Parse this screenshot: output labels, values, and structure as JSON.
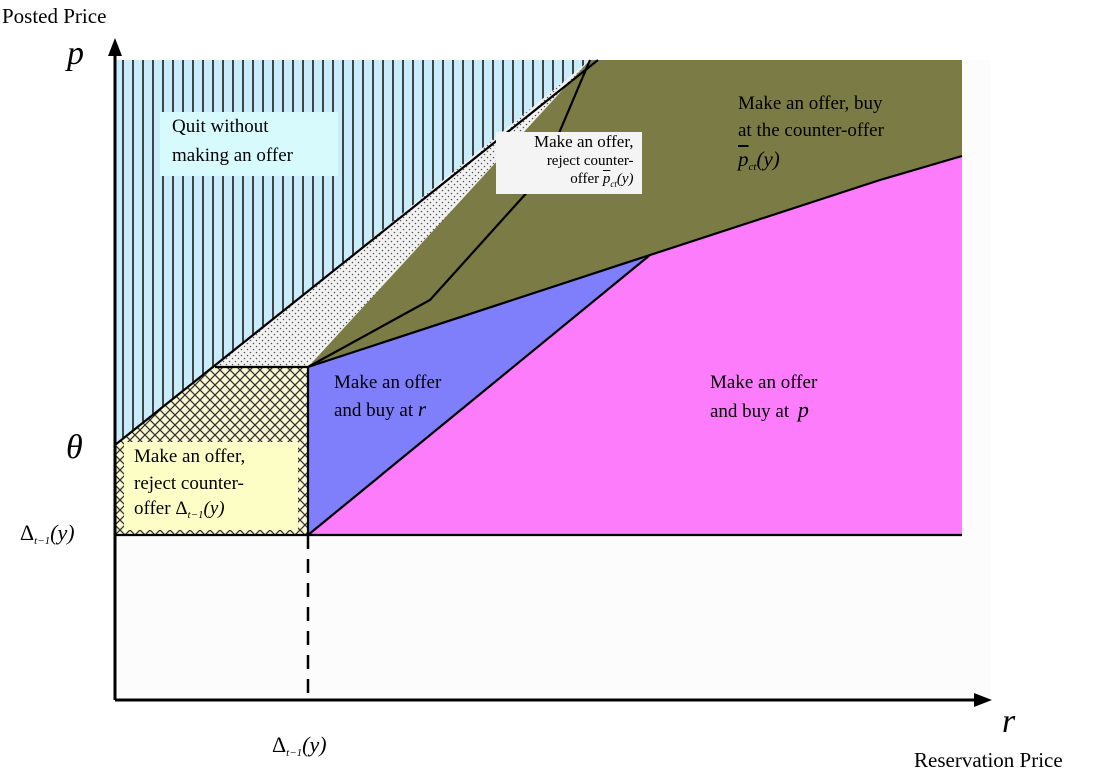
{
  "axes": {
    "y_title": "Posted Price",
    "x_title": "Reservation Price",
    "y_symbol": "p",
    "x_symbol": "r",
    "theta_symbol": "θ",
    "delta_label": {
      "base": "Δ",
      "sub": "t−1",
      "arg": "(y)"
    }
  },
  "regions": {
    "quit": {
      "line1": "Quit without",
      "line2": "making an offer",
      "fill": "#c9ecfb"
    },
    "reject_top": {
      "line1": "Make an offer,",
      "line2": "reject counter-",
      "line3_prefix": "offer ",
      "sym": "p",
      "sub": "ct",
      "arg": "(y)"
    },
    "buy_counter": {
      "line1": "Make an offer, buy",
      "line2": "at the counter-offer",
      "sym": "p",
      "sub": "ct",
      "arg": "(y)",
      "fill": "#7b7b45"
    },
    "buy_r": {
      "line1": "Make an offer",
      "line2_prefix": "and buy at ",
      "sym": "r",
      "fill": "#7f7ffb"
    },
    "buy_p": {
      "line1": "Make an offer",
      "line2_prefix": "and buy at ",
      "sym": "p",
      "fill": "#fc7cfc"
    },
    "reject_bottom": {
      "line1": "Make an offer,",
      "line2": "reject counter-",
      "line3_prefix": "offer ",
      "base": "Δ",
      "sub": "t−1",
      "arg": "(y)",
      "fill": "#fdfdc6"
    }
  }
}
